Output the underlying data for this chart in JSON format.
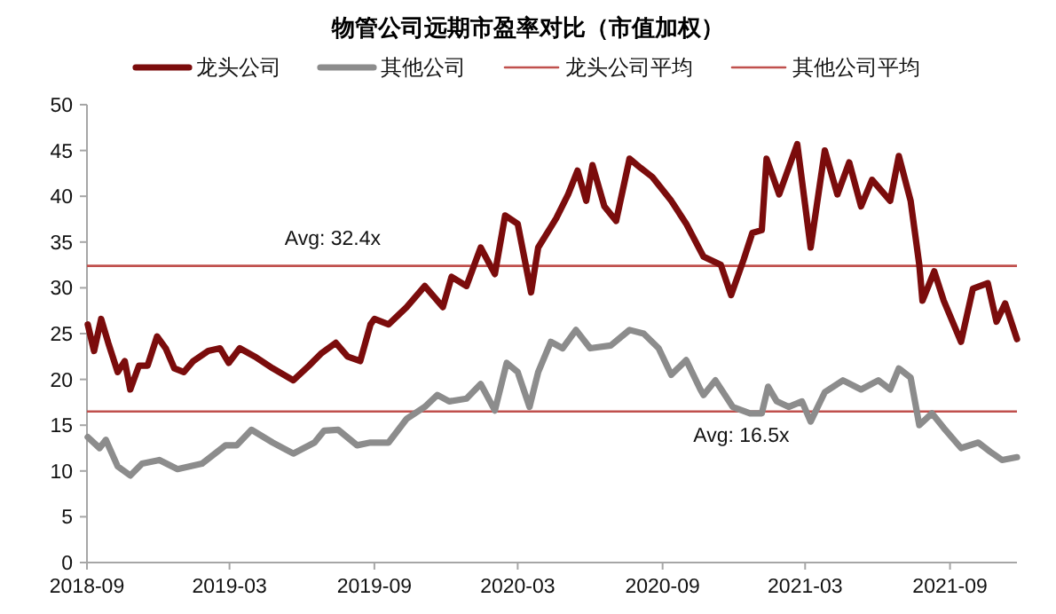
{
  "chart_data": {
    "type": "line",
    "title": "物管公司远期市盈率对比（市值加权）",
    "xlim": [
      "2018-09-01",
      "2021-11-25"
    ],
    "ylim": [
      0,
      50
    ],
    "xticks": [
      "2018-09",
      "2019-03",
      "2019-09",
      "2020-03",
      "2020-09",
      "2021-03",
      "2021-09"
    ],
    "yticks": [
      0,
      5,
      10,
      15,
      20,
      25,
      30,
      35,
      40,
      45,
      50
    ],
    "legend": "top",
    "grid": false,
    "series": [
      {
        "name": "龙头公司",
        "color": "#7b0c0c",
        "x": [
          "2018-09-02",
          "2018-09-10",
          "2018-09-19",
          "2018-09-28",
          "2018-10-10",
          "2018-10-19",
          "2018-10-26",
          "2018-11-06",
          "2018-11-17",
          "2018-11-29",
          "2018-12-10",
          "2018-12-21",
          "2019-01-02",
          "2019-01-14",
          "2019-02-02",
          "2019-02-17",
          "2019-02-28",
          "2019-03-14",
          "2019-04-02",
          "2019-04-25",
          "2019-05-21",
          "2019-06-10",
          "2019-06-25",
          "2019-07-14",
          "2019-07-29",
          "2019-08-14",
          "2019-08-27",
          "2019-09-01",
          "2019-09-19",
          "2019-10-12",
          "2019-11-04",
          "2019-11-27",
          "2019-12-08",
          "2019-12-27",
          "2020-01-14",
          "2020-02-01",
          "2020-02-14",
          "2020-03-01",
          "2020-03-18",
          "2020-03-27",
          "2020-04-19",
          "2020-05-04",
          "2020-05-16",
          "2020-05-27",
          "2020-06-04",
          "2020-06-19",
          "2020-07-04",
          "2020-07-21",
          "2020-08-04",
          "2020-08-19",
          "2020-09-12",
          "2020-10-01",
          "2020-10-23",
          "2020-11-14",
          "2020-11-27",
          "2020-12-13",
          "2020-12-24",
          "2021-01-05",
          "2021-01-11",
          "2021-01-27",
          "2021-02-19",
          "2021-03-08",
          "2021-03-26",
          "2021-04-11",
          "2021-04-26",
          "2021-05-11",
          "2021-05-25",
          "2021-06-17",
          "2021-06-28",
          "2021-07-13",
          "2021-07-24",
          "2021-07-28",
          "2021-08-12",
          "2021-08-24",
          "2021-09-15",
          "2021-09-30",
          "2021-10-19",
          "2021-10-30",
          "2021-11-10",
          "2021-11-25"
        ],
        "values": [
          26.0,
          23.1,
          26.6,
          24.0,
          20.8,
          22.0,
          18.9,
          21.5,
          21.5,
          24.7,
          23.4,
          21.2,
          20.8,
          22.0,
          23.1,
          23.4,
          21.8,
          23.4,
          22.5,
          21.2,
          19.9,
          21.5,
          22.8,
          24.0,
          22.5,
          22.0,
          26.0,
          26.6,
          26.0,
          27.9,
          30.2,
          27.9,
          31.2,
          30.2,
          34.4,
          31.5,
          37.9,
          37.0,
          29.5,
          34.4,
          37.6,
          40.2,
          42.8,
          39.5,
          43.4,
          38.9,
          37.3,
          44.1,
          43.1,
          42.1,
          39.5,
          37.0,
          33.4,
          32.5,
          29.2,
          33.1,
          36.0,
          36.3,
          44.1,
          40.2,
          45.7,
          34.4,
          45.0,
          40.2,
          43.7,
          38.9,
          41.8,
          39.5,
          44.4,
          39.5,
          32.5,
          28.6,
          31.8,
          28.6,
          24.1,
          29.9,
          30.5,
          26.3,
          28.3,
          24.4
        ]
      },
      {
        "name": "其他公司",
        "color": "#8c8c8c",
        "x": [
          "2018-09-02",
          "2018-09-17",
          "2018-09-25",
          "2018-10-10",
          "2018-10-26",
          "2018-11-10",
          "2018-12-02",
          "2018-12-25",
          "2019-01-25",
          "2019-02-24",
          "2019-03-10",
          "2019-03-29",
          "2019-04-25",
          "2019-05-21",
          "2019-06-17",
          "2019-06-29",
          "2019-07-17",
          "2019-08-10",
          "2019-08-27",
          "2019-09-19",
          "2019-10-12",
          "2019-11-04",
          "2019-11-20",
          "2019-12-05",
          "2019-12-27",
          "2020-01-14",
          "2020-02-01",
          "2020-02-16",
          "2020-03-01",
          "2020-03-16",
          "2020-03-27",
          "2020-04-12",
          "2020-04-27",
          "2020-05-14",
          "2020-06-01",
          "2020-06-27",
          "2020-07-21",
          "2020-08-08",
          "2020-08-27",
          "2020-09-12",
          "2020-10-01",
          "2020-10-19",
          "2020-10-23",
          "2020-11-07",
          "2020-11-29",
          "2020-12-21",
          "2021-01-05",
          "2021-01-13",
          "2021-01-24",
          "2021-02-08",
          "2021-02-25",
          "2021-03-08",
          "2021-03-26",
          "2021-04-18",
          "2021-05-11",
          "2021-06-02",
          "2021-06-17",
          "2021-06-28",
          "2021-07-13",
          "2021-07-24",
          "2021-08-09",
          "2021-08-24",
          "2021-09-15",
          "2021-10-07",
          "2021-10-22",
          "2021-11-06",
          "2021-11-25"
        ],
        "values": [
          13.7,
          12.5,
          13.4,
          10.5,
          9.5,
          10.8,
          11.2,
          10.2,
          10.8,
          12.8,
          12.8,
          14.5,
          13.1,
          11.9,
          13.1,
          14.4,
          14.5,
          12.8,
          13.1,
          13.1,
          15.7,
          17.0,
          18.3,
          17.6,
          17.9,
          19.5,
          16.6,
          21.8,
          20.8,
          17.0,
          20.8,
          24.1,
          23.4,
          25.4,
          23.4,
          23.7,
          25.4,
          25.0,
          23.4,
          20.5,
          22.1,
          18.9,
          18.3,
          19.9,
          17.0,
          16.3,
          16.3,
          19.2,
          17.6,
          17.0,
          17.6,
          15.4,
          18.6,
          19.9,
          18.9,
          19.9,
          18.9,
          21.2,
          20.2,
          15.0,
          16.3,
          14.7,
          12.5,
          13.1,
          12.1,
          11.2,
          11.5
        ]
      }
    ],
    "ref_lines": [
      {
        "axis": "y",
        "value": 32.4,
        "label": "龙头公司平均",
        "color": "#c0504d"
      },
      {
        "axis": "y",
        "value": 16.5,
        "label": "其他公司平均",
        "color": "#c0504d"
      }
    ],
    "annotations": [
      {
        "text": "Avg: 32.4x",
        "x": "2019-07-10",
        "y": 32.4
      },
      {
        "text": "Avg: 16.5x",
        "x": "2020-12-10",
        "y": 16.5
      }
    ]
  }
}
